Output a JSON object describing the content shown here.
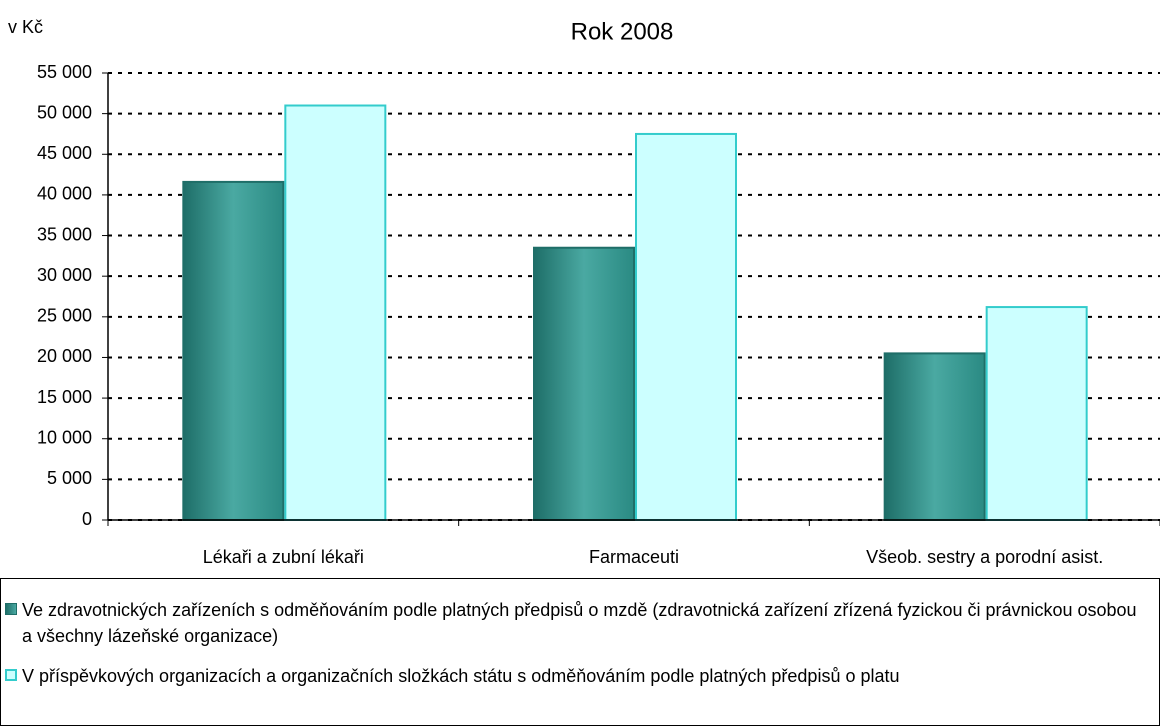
{
  "chart_data": {
    "type": "bar",
    "title": "Rok 2008",
    "y_label": "v Kč",
    "categories": [
      "Lékaři a zubní lékaři",
      "Farmaceuti",
      "Všeob. sestry a porodní asist."
    ],
    "series": [
      {
        "name": "Ve zdravotnických zařízeních s odměňováním podle platných předpisů o mzdě (zdravotnická zařízení zřízená fyzickou či právnickou osobou a všechny lázeňské organizace)",
        "color": "#2e928a",
        "values": [
          41600,
          33500,
          20500
        ]
      },
      {
        "name": "V příspěvkových organizacích a organizačních složkách státu s odměňováním podle platných předpisů o platu",
        "color": "#ccffff",
        "values": [
          51000,
          47500,
          26200
        ]
      }
    ],
    "ylim": [
      0,
      55000
    ],
    "yticks": [
      0,
      {
        "value": 5000,
        "label": "5 000"
      },
      {
        "value": 10000,
        "label": "10 000"
      },
      {
        "value": 15000,
        "label": "15 000"
      },
      {
        "value": 20000,
        "label": "20 000"
      },
      {
        "value": 25000,
        "label": "25 000"
      },
      {
        "value": 30000,
        "label": "30 000"
      },
      {
        "value": 35000,
        "label": "35 000"
      },
      {
        "value": 40000,
        "label": "40 000"
      },
      {
        "value": 45000,
        "label": "45 000"
      },
      {
        "value": 50000,
        "label": "50 000"
      },
      {
        "value": 55000,
        "label": "55 000"
      }
    ],
    "grid": true
  }
}
